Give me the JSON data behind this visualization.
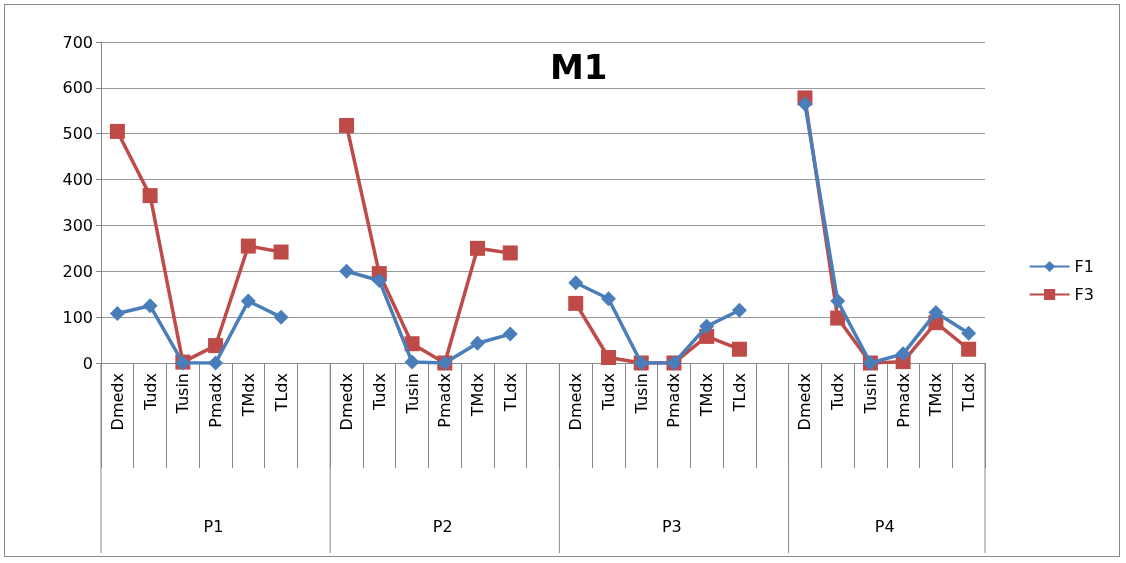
{
  "chart_data": {
    "type": "line",
    "title": "M1",
    "categories": [
      "Dmedx",
      "Tudx",
      "Tusin",
      "Pmadx",
      "TMdx",
      "TLdx",
      null,
      "Dmedx",
      "Tudx",
      "Tusin",
      "Pmadx",
      "TMdx",
      "TLdx",
      null,
      "Dmedx",
      "Tudx",
      "Tusin",
      "Pmadx",
      "TMdx",
      "TLdx",
      null,
      "Dmedx",
      "Tudx",
      "Tusin",
      "Pmadx",
      "TMdx",
      "TLdx"
    ],
    "series": [
      {
        "name": "F1",
        "color": "#4a7ebb",
        "marker": "diamond",
        "values": [
          108,
          125,
          0,
          0,
          135,
          100,
          null,
          200,
          180,
          2,
          0,
          43,
          63,
          null,
          175,
          140,
          0,
          0,
          80,
          115,
          null,
          565,
          135,
          0,
          20,
          110,
          65
        ]
      },
      {
        "name": "F3",
        "color": "#be4b48",
        "marker": "square",
        "values": [
          505,
          365,
          2,
          38,
          255,
          242,
          null,
          518,
          195,
          42,
          0,
          250,
          240,
          null,
          130,
          12,
          0,
          0,
          58,
          30,
          null,
          578,
          98,
          0,
          3,
          88,
          30
        ]
      }
    ],
    "annotations": [
      "P1",
      "P2",
      "P3",
      "P4"
    ],
    "ylim": [
      0,
      700
    ],
    "yticks": [
      0,
      100,
      200,
      300,
      400,
      500,
      600,
      700
    ],
    "grid": "y",
    "legend": "right"
  }
}
